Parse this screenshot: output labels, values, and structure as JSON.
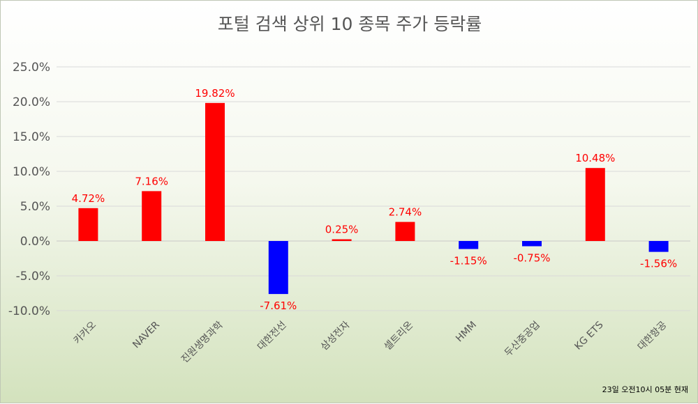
{
  "chart_data": {
    "type": "bar",
    "title": "포털 검색 상위 10 종목 주가 등락률",
    "xlabel": "",
    "ylabel": "",
    "categories": [
      "카카오",
      "NAVER",
      "진원생명과학",
      "대한전선",
      "삼성전자",
      "셀트리온",
      "HMM",
      "두산중공업",
      "KG ETS",
      "대한항공"
    ],
    "values": [
      4.72,
      7.16,
      19.82,
      -7.61,
      0.25,
      2.74,
      -1.15,
      -0.75,
      10.48,
      -1.56
    ],
    "data_labels": [
      "4.72%",
      "7.16%",
      "19.82%",
      "-7.61%",
      "0.25%",
      "2.74%",
      "-1.15%",
      "-0.75%",
      "10.48%",
      "-1.56%"
    ],
    "ylim": [
      -10,
      25
    ],
    "yticks": [
      -10,
      -5,
      0,
      5,
      10,
      15,
      20,
      25
    ],
    "ytick_labels": [
      "-10.0%",
      "-5.0%",
      "0.0%",
      "5.0%",
      "10.0%",
      "15.0%",
      "20.0%",
      "25.0%"
    ],
    "grid": true,
    "legend": "none",
    "colors": {
      "positive": "#ff0000",
      "negative": "#0000ff",
      "label": "#ff0000",
      "axis_text": "#555555"
    },
    "footnote": "23일 오전10시 05분 현재"
  }
}
